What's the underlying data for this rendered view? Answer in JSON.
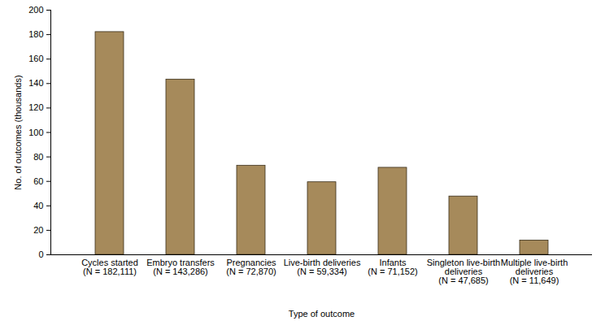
{
  "chart_data": {
    "type": "bar",
    "x_label": "Type of outcome",
    "y_label": "No. of outcomes (thousands)",
    "categories": [
      "Cycles started\n(N = 182,111)",
      "Embryo transfers\n(N = 143,286)",
      "Pregnancies\n(N = 72,870)",
      "Live-birth deliveries\n(N = 59,334)",
      "Infants\n(N = 71,152)",
      "Singleton live-birth\ndeliveries\n(N = 47,685)",
      "Multiple live-birth\ndeliveries\n(N = 11,649)"
    ],
    "values": [
      182.111,
      143.286,
      72.87,
      59.334,
      71.152,
      47.685,
      11.649
    ],
    "color": "#a68a5b",
    "ylim": [
      0,
      200
    ],
    "yticks": [
      0,
      20,
      40,
      60,
      80,
      100,
      120,
      140,
      160,
      180,
      200
    ],
    "grid": false
  }
}
